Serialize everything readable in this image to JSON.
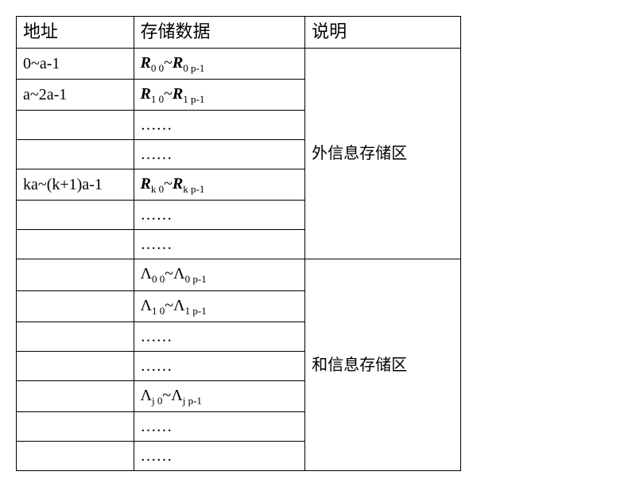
{
  "table": {
    "border_color": "#000000",
    "background_color": "#ffffff",
    "font_main": "SimSun",
    "font_math": "Times New Roman",
    "header": {
      "addr": "地址",
      "data": "存储数据",
      "desc": "说明"
    },
    "ellipsis": "……",
    "section1": {
      "desc": "外信息存储区",
      "rows": [
        {
          "addr": "0~a-1",
          "data_html": "<span class='bi'>R</span><sub>0 0</sub>~<span class='bi'>R</span><sub>0 p-1</sub>"
        },
        {
          "addr": "a~2a-1",
          "data_html": "<span class='bi'>R</span><sub>1 0</sub>~<span class='bi'>R</span><sub>1 p-1</sub>"
        },
        {
          "addr": "",
          "data_html": "……"
        },
        {
          "addr": "",
          "data_html": "……"
        },
        {
          "addr": "ka~(k+1)a-1",
          "data_html": "<span class='bi'>R</span><sub>k 0</sub>~<span class='bi'>R</span><sub>k p-1</sub>"
        },
        {
          "addr": "",
          "data_html": "……"
        },
        {
          "addr": "",
          "data_html": "……"
        }
      ]
    },
    "section2": {
      "desc": "和信息存储区",
      "rows": [
        {
          "addr": "",
          "data_html": "<span class='serif'>Λ</span><sub>0 0</sub>~<span class='serif'>Λ</span><sub>0 p-1</sub>"
        },
        {
          "addr": "",
          "data_html": "<span class='serif'>Λ</span><sub>1 0</sub>~<span class='serif'>Λ</span><sub>1 p-1</sub>"
        },
        {
          "addr": "",
          "data_html": "……"
        },
        {
          "addr": "",
          "data_html": "……"
        },
        {
          "addr": "",
          "data_html": "<span class='serif'>Λ</span><sub>j 0</sub>~<span class='serif'>Λ</span><sub>j p-1</sub>"
        },
        {
          "addr": "",
          "data_html": "……"
        },
        {
          "addr": "",
          "data_html": "……"
        }
      ]
    }
  }
}
